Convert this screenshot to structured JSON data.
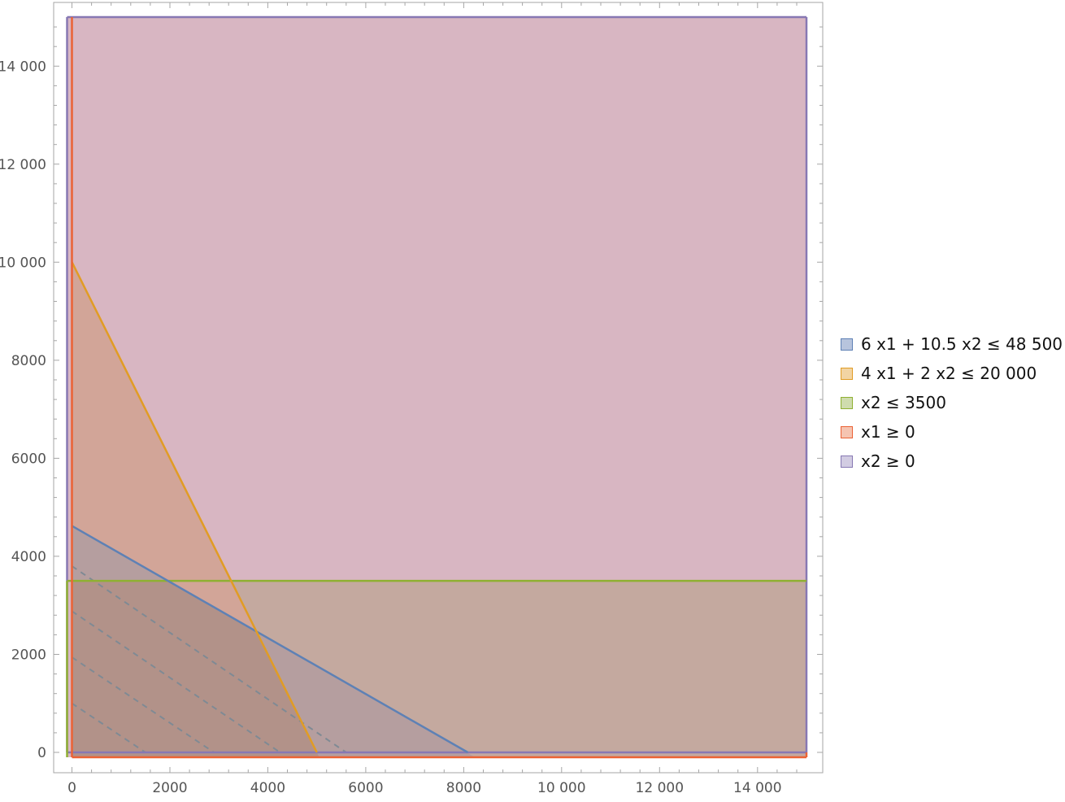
{
  "chart_data": {
    "type": "region",
    "title": "",
    "xlabel": "",
    "ylabel": "",
    "xlim": [
      -150,
      15100
    ],
    "ylim": [
      -400,
      15300
    ],
    "plot_range": {
      "x": [
        -100,
        15000
      ],
      "y": [
        -100,
        15000
      ]
    },
    "xticks": [
      0,
      2000,
      4000,
      6000,
      8000,
      10000,
      12000,
      14000
    ],
    "yticks": [
      0,
      2000,
      4000,
      6000,
      8000,
      10000,
      12000,
      14000
    ],
    "xtick_labels": [
      "0",
      "2000",
      "4000",
      "6000",
      "8000",
      "10 000",
      "12 000",
      "14 000"
    ],
    "ytick_labels": [
      "0",
      "2000",
      "4000",
      "6000",
      "8000",
      "10 000",
      "12 000",
      "14 000"
    ],
    "constraints": [
      {
        "label": "6 x1 + 10.5 x2 ≤ 48 500",
        "a": 6,
        "b": 10.5,
        "op": "<=",
        "c": 48500,
        "x_intercept": 8083.3,
        "y_intercept": 4619.0,
        "color": "#5e81b5",
        "fill": "#b7c4dd"
      },
      {
        "label": "4 x1 + 2 x2 ≤ 20 000",
        "a": 4,
        "b": 2,
        "op": "<=",
        "c": 20000,
        "x_intercept": 5000,
        "y_intercept": 10000,
        "color": "#e19c24",
        "fill": "#f2d4a3"
      },
      {
        "label": "x2 ≤ 3500",
        "a": 0,
        "b": 1,
        "op": "<=",
        "c": 3500,
        "color": "#8fb032",
        "fill": "#cfdcae"
      },
      {
        "label": "x1 ≥ 0",
        "a": 1,
        "b": 0,
        "op": ">=",
        "c": 0,
        "color": "#eb6235",
        "fill": "#f5c4b1"
      },
      {
        "label": "x2 ≥ 0",
        "a": 0,
        "b": 1,
        "op": ">=",
        "c": 0,
        "color": "#8778b3",
        "fill": "#d2cce2"
      }
    ],
    "objective_contours": {
      "style": "dashed",
      "color": "#7f8a94",
      "lines": [
        {
          "x_intercept": 1500,
          "y_intercept": 1000
        },
        {
          "x_intercept": 2900,
          "y_intercept": 1940
        },
        {
          "x_intercept": 4250,
          "y_intercept": 2880
        },
        {
          "x_intercept": 5600,
          "y_intercept": 3800
        }
      ]
    },
    "legend": {
      "placement": "right"
    },
    "grid": false,
    "background_region_color": "#d8b6c2",
    "overlap_colors": {
      "band_below_3500": "#c4a99f",
      "triangle_orange": "#d2a598",
      "triangle_blue": "#b59e9f",
      "core_region": "#b29289"
    }
  }
}
